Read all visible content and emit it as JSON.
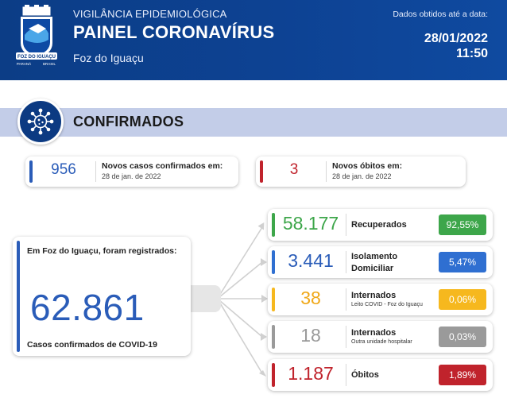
{
  "header": {
    "subtitle": "VIGILÂNCIA EPIDEMIOLÓGICA",
    "title": "PAINEL CORONAVÍRUS",
    "city": "Foz do Iguaçu",
    "note": "Dados obtidos até a data:",
    "date": "28/01/2022",
    "time": "11:50",
    "crest_text": "FOZ DO IGUAÇU",
    "crest_left": "PARANÁ",
    "crest_right": "BRASIL"
  },
  "section": {
    "title": "CONFIRMADOS",
    "icon": "virus-icon"
  },
  "new_cases": {
    "value": "956",
    "label": "Novos casos confirmados em:",
    "date": "28 de jan. de 2022",
    "color": "#2a5cb8"
  },
  "new_deaths": {
    "value": "3",
    "label": "Novos óbitos em:",
    "date": "28 de jan. de 2022",
    "color": "#c0232c"
  },
  "total": {
    "label": "Em Foz do Iguaçu, foram registrados:",
    "value": "62.861",
    "footer": "Casos confirmados de COVID-19",
    "color": "#2a5cb8"
  },
  "breakdown": [
    {
      "value": "58.177",
      "label": "Recuperados",
      "label2": "",
      "sub": "",
      "pct": "92,55%",
      "color": "#3da64a",
      "num_color": "#3da64a"
    },
    {
      "value": "3.441",
      "label": "Isolamento",
      "label2": "Domiciliar",
      "sub": "",
      "pct": "5,47%",
      "color": "#2f6fd1",
      "num_color": "#2a5cb8"
    },
    {
      "value": "38",
      "label": "Internados",
      "label2": "",
      "sub": "Leito COVID - Foz do Iguaçu",
      "pct": "0,06%",
      "color": "#f6b81e",
      "num_color": "#f0a818"
    },
    {
      "value": "18",
      "label": "Internados",
      "label2": "",
      "sub": "Outra unidade hospitalar",
      "pct": "0,03%",
      "color": "#9a9a9a",
      "num_color": "#9a9a9a"
    },
    {
      "value": "1.187",
      "label": "Óbitos",
      "label2": "",
      "sub": "",
      "pct": "1,89%",
      "color": "#c0232c",
      "num_color": "#c0232c"
    }
  ]
}
